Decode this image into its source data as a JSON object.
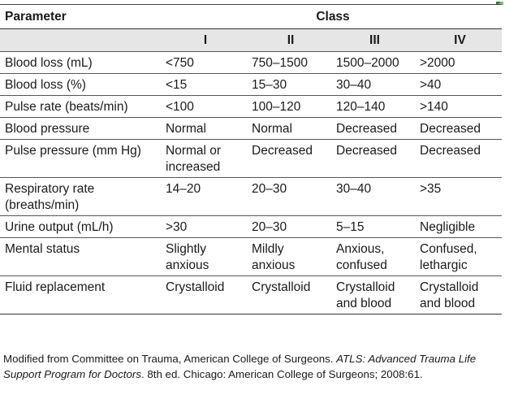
{
  "table": {
    "header_parameter": "Parameter",
    "header_class": "Class",
    "class_labels": [
      "I",
      "II",
      "III",
      "IV"
    ],
    "rows": [
      {
        "parameter": "Blood loss (mL)",
        "values": [
          "<750",
          "750–1500",
          "1500–2000",
          ">2000"
        ]
      },
      {
        "parameter": "Blood loss (%)",
        "values": [
          "<15",
          "15–30",
          "30–40",
          ">40"
        ]
      },
      {
        "parameter": "Pulse rate (beats/min)",
        "values": [
          "<100",
          "100–120",
          "120–140",
          ">140"
        ]
      },
      {
        "parameter": "Blood pressure",
        "values": [
          "Normal",
          "Normal",
          "Decreased",
          "Decreased"
        ]
      },
      {
        "parameter": "Pulse pressure (mm Hg)",
        "values": [
          "Normal or increased",
          "Decreased",
          "Decreased",
          "Decreased"
        ]
      },
      {
        "parameter": "Respiratory rate (breaths/min)",
        "values": [
          "14–20",
          "20–30",
          "30–40",
          ">35"
        ]
      },
      {
        "parameter": "Urine output (mL/h)",
        "values": [
          ">30",
          "20–30",
          "5–15",
          "Negligible"
        ]
      },
      {
        "parameter": "Mental status",
        "values": [
          "Slightly anxious",
          "Mildly anxious",
          "Anxious, confused",
          "Confused, lethargic"
        ]
      },
      {
        "parameter": "Fluid replacement",
        "values": [
          "Crystalloid",
          "Crystalloid",
          "Crystalloid and blood",
          "Crystalloid and blood"
        ]
      }
    ]
  },
  "footnote": {
    "prefix": "Modified from Committee on Trauma, American College of Surgeons. ",
    "title_italic": "ATLS: Advanced Trauma Life Support Program for Doctors",
    "suffix": ". 8th ed. Chicago: American College of Surgeons; 2008:61."
  }
}
